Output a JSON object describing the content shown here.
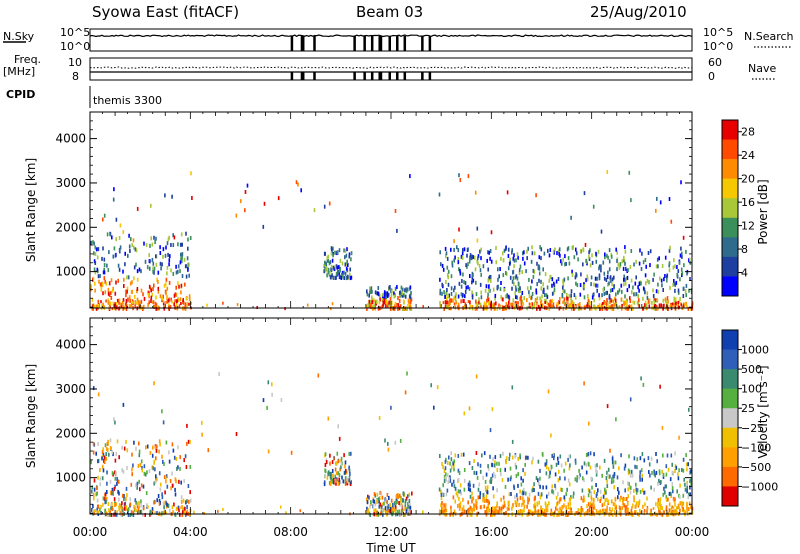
{
  "header": {
    "station": "Syowa East (fitACF)",
    "beam": "Beam 03",
    "date": "25/Aug/2010"
  },
  "panels": {
    "nsky_label": "N.Sky",
    "nsky_ticks": [
      "10^5",
      "10^0"
    ],
    "nsearch_label": "N.Search",
    "nsearch_ticks": [
      "10^5",
      "10^0"
    ],
    "freq_label_line1": "Freq.",
    "freq_label_line2": "[MHz]",
    "freq_ticks": [
      "10",
      "8"
    ],
    "nave_label": "Nave",
    "nave_ticks": [
      "60",
      "0"
    ],
    "cpid_label": "CPID",
    "cpid_value": "themis 3300"
  },
  "colors": {
    "power": [
      "#0000ff",
      "#1f3fa0",
      "#2e6b8c",
      "#3b8f5a",
      "#a8c83a",
      "#f5c800",
      "#ff8c00",
      "#ff4a00",
      "#e60000"
    ],
    "velocity": [
      "#1040b0",
      "#2f5fb8",
      "#3a8a70",
      "#55b040",
      "#c8c8c8",
      "#f0c000",
      "#ffa000",
      "#ff6a00",
      "#e00000"
    ]
  },
  "chart_data": [
    {
      "type": "heatmap",
      "title": "",
      "xlabel": "",
      "ylabel": "Slant Range [km]",
      "y_ticks": [
        1000,
        2000,
        3000,
        4000
      ],
      "ylim": [
        180,
        4600
      ],
      "xlim_hours": [
        0,
        24
      ],
      "colorbar": {
        "label": "Power [dB]",
        "tick_labels": [
          "4",
          "8",
          "12",
          "16",
          "20",
          "24",
          "28"
        ],
        "range": [
          0,
          30
        ]
      },
      "echo_regions": [
        {
          "t": [
            0.0,
            4.0
          ],
          "r": [
            200,
            1900
          ],
          "level": "high"
        },
        {
          "t": [
            9.3,
            10.4
          ],
          "r": [
            900,
            1600
          ],
          "level": "mid"
        },
        {
          "t": [
            11.0,
            12.8
          ],
          "r": [
            200,
            700
          ],
          "level": "mid"
        },
        {
          "t": [
            13.9,
            24.0
          ],
          "r": [
            200,
            1600
          ],
          "level": "mid"
        }
      ]
    },
    {
      "type": "heatmap",
      "title": "",
      "xlabel": "Time UT",
      "ylabel": "Slant Range [km]",
      "x_tick_labels": [
        "00:00",
        "04:00",
        "08:00",
        "12:00",
        "16:00",
        "20:00",
        "00:00"
      ],
      "y_ticks": [
        1000,
        2000,
        3000,
        4000
      ],
      "ylim": [
        180,
        4600
      ],
      "xlim_hours": [
        0,
        24
      ],
      "colorbar": {
        "label": "Velocity [m s⁻¹]",
        "tick_labels": [
          "1000",
          "500",
          "100",
          "25",
          "−25",
          "−100",
          "−500",
          "−1000"
        ]
      },
      "echo_regions": [
        {
          "t": [
            0.0,
            4.0
          ],
          "r": [
            200,
            1900
          ],
          "level": "mixed"
        },
        {
          "t": [
            9.3,
            10.4
          ],
          "r": [
            900,
            1600
          ],
          "level": "mixed"
        },
        {
          "t": [
            11.0,
            12.8
          ],
          "r": [
            200,
            700
          ],
          "level": "mixed"
        },
        {
          "t": [
            13.9,
            24.0
          ],
          "r": [
            200,
            1600
          ],
          "level": "negative"
        }
      ]
    }
  ]
}
